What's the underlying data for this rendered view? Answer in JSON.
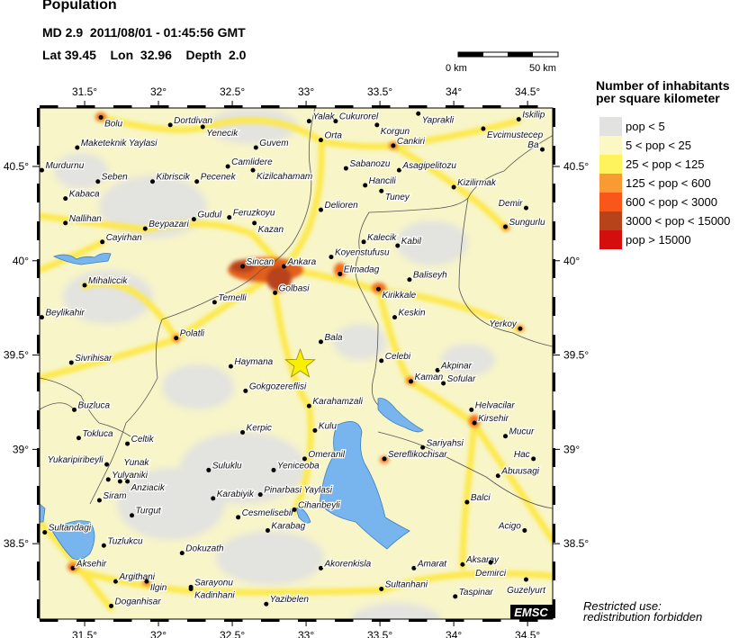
{
  "header": {
    "title": "Population",
    "event": "MD 2.9  2011/08/01 - 01:45:56 GMT",
    "location": "Lat 39.45    Lon  32.96    Depth  2.0"
  },
  "scale_bar": {
    "start_label": "0 km",
    "end_label": "50 km"
  },
  "legend": {
    "title_line1": "Number of inhabitants",
    "title_line2": "per square kilometer",
    "items": [
      {
        "label": "pop < 5",
        "color": "#e2e3e1"
      },
      {
        "label": "5 < pop < 25",
        "color": "#fbf8c6"
      },
      {
        "label": "25 < pop < 125",
        "color": "#fdf35c"
      },
      {
        "label": "125 < pop < 600",
        "color": "#fa9a32"
      },
      {
        "label": "600 < pop < 3000",
        "color": "#f9561a"
      },
      {
        "label": "3000 < pop < 15000",
        "color": "#b7431b"
      },
      {
        "label": "pop > 15000",
        "color": "#d40d0d"
      }
    ]
  },
  "map": {
    "lon_range": [
      31.195,
      34.67
    ],
    "lat_range": [
      38.1,
      40.81
    ],
    "lon_ticks": [
      {
        "v": 31.5,
        "label": "31.5°"
      },
      {
        "v": 32,
        "label": "32°"
      },
      {
        "v": 32.5,
        "label": "32.5°"
      },
      {
        "v": 33,
        "label": "33°"
      },
      {
        "v": 33.5,
        "label": "33.5°"
      },
      {
        "v": 34,
        "label": "34°"
      },
      {
        "v": 34.5,
        "label": "34.5°"
      }
    ],
    "lat_ticks": [
      {
        "v": 40.5,
        "label": "40.5°"
      },
      {
        "v": 40,
        "label": "40°"
      },
      {
        "v": 39.5,
        "label": "39.5°"
      },
      {
        "v": 39,
        "label": "39°"
      },
      {
        "v": 38.5,
        "label": "38.5°"
      }
    ],
    "epicenter": {
      "lon": 32.96,
      "lat": 39.45,
      "color": "#f8f000"
    },
    "cities": [
      {
        "name": "Bolu",
        "lon": 31.61,
        "lat": 40.76
      },
      {
        "name": "Dortdivan",
        "lon": 32.08,
        "lat": 40.72
      },
      {
        "name": "Yenecik",
        "lon": 32.3,
        "lat": 40.71
      },
      {
        "name": "Maketeknik Yaylasi",
        "lon": 31.45,
        "lat": 40.6
      },
      {
        "name": "Murdurnu",
        "lon": 31.21,
        "lat": 40.48
      },
      {
        "name": "Seben",
        "lon": 31.59,
        "lat": 40.42
      },
      {
        "name": "Kibriscik",
        "lon": 31.96,
        "lat": 40.42
      },
      {
        "name": "Pecenek",
        "lon": 32.26,
        "lat": 40.42
      },
      {
        "name": "Camlidere",
        "lon": 32.47,
        "lat": 40.5
      },
      {
        "name": "Kizilcahamam",
        "lon": 32.64,
        "lat": 40.48
      },
      {
        "name": "Guvem",
        "lon": 32.66,
        "lat": 40.6
      },
      {
        "name": "Kabaca",
        "lon": 31.37,
        "lat": 40.33
      },
      {
        "name": "Nallihan",
        "lon": 31.37,
        "lat": 40.2
      },
      {
        "name": "Cayirhan",
        "lon": 31.62,
        "lat": 40.1
      },
      {
        "name": "Beypazari",
        "lon": 31.91,
        "lat": 40.17
      },
      {
        "name": "Gudul",
        "lon": 32.24,
        "lat": 40.22
      },
      {
        "name": "Feruzkoyu",
        "lon": 32.48,
        "lat": 40.23
      },
      {
        "name": "Kazan",
        "lon": 32.65,
        "lat": 40.2
      },
      {
        "name": "Sincan",
        "lon": 32.57,
        "lat": 39.97
      },
      {
        "name": "Ankara",
        "lon": 32.85,
        "lat": 39.97
      },
      {
        "name": "Golbasi",
        "lon": 32.79,
        "lat": 39.83
      },
      {
        "name": "Temelli",
        "lon": 32.38,
        "lat": 39.78
      },
      {
        "name": "Mihaliccik",
        "lon": 31.5,
        "lat": 39.87
      },
      {
        "name": "Beylikahir",
        "lon": 31.21,
        "lat": 39.7
      },
      {
        "name": "Polatli",
        "lon": 32.12,
        "lat": 39.59
      },
      {
        "name": "Sivrihisar",
        "lon": 31.41,
        "lat": 39.46
      },
      {
        "name": "Haymana",
        "lon": 32.49,
        "lat": 39.44
      },
      {
        "name": "Gokgozereflisi",
        "lon": 32.59,
        "lat": 39.31
      },
      {
        "name": "Bala",
        "lon": 33.1,
        "lat": 39.57
      },
      {
        "name": "Karahamzali",
        "lon": 33.02,
        "lat": 39.23
      },
      {
        "name": "Kulu",
        "lon": 33.06,
        "lat": 39.1
      },
      {
        "name": "Kerpic",
        "lon": 32.57,
        "lat": 39.09
      },
      {
        "name": "Omeranil",
        "lon": 32.99,
        "lat": 38.95
      },
      {
        "name": "Yeniceoba",
        "lon": 32.78,
        "lat": 38.89
      },
      {
        "name": "Suluklu",
        "lon": 32.34,
        "lat": 38.89
      },
      {
        "name": "Karabiyik",
        "lon": 32.37,
        "lat": 38.74
      },
      {
        "name": "Pinarbasi Yaylasi",
        "lon": 32.69,
        "lat": 38.76
      },
      {
        "name": "Cesmelisebil",
        "lon": 32.54,
        "lat": 38.64
      },
      {
        "name": "Cihanbeyli",
        "lon": 32.92,
        "lat": 38.68
      },
      {
        "name": "Karabag",
        "lon": 32.74,
        "lat": 38.57
      },
      {
        "name": "Dokuzath",
        "lon": 32.16,
        "lat": 38.45
      },
      {
        "name": "Akorenkisla",
        "lon": 33.1,
        "lat": 38.37
      },
      {
        "name": "Sarayonu",
        "lon": 32.22,
        "lat": 38.27
      },
      {
        "name": "Kadinhani",
        "lon": 32.22,
        "lat": 38.26
      },
      {
        "name": "Yazibelen",
        "lon": 32.73,
        "lat": 38.18
      },
      {
        "name": "Doganhisar",
        "lon": 31.68,
        "lat": 38.17
      },
      {
        "name": "Argithani",
        "lon": 31.71,
        "lat": 38.3
      },
      {
        "name": "Ilgin",
        "lon": 31.92,
        "lat": 38.3
      },
      {
        "name": "Aksehir",
        "lon": 31.42,
        "lat": 38.37
      },
      {
        "name": "Tuzlukcu",
        "lon": 31.63,
        "lat": 38.49
      },
      {
        "name": "Sultandagi",
        "lon": 31.23,
        "lat": 38.56
      },
      {
        "name": "Turgut",
        "lon": 31.82,
        "lat": 38.65
      },
      {
        "name": "Siram",
        "lon": 31.6,
        "lat": 38.73
      },
      {
        "name": "Yulyaniki",
        "lon": 31.66,
        "lat": 38.84
      },
      {
        "name": "Yunak",
        "lon": 31.74,
        "lat": 38.83
      },
      {
        "name": "Anziacik",
        "lon": 31.79,
        "lat": 38.83
      },
      {
        "name": "Yukaripiribeyli",
        "lon": 31.65,
        "lat": 38.92
      },
      {
        "name": "Celtik",
        "lon": 31.79,
        "lat": 39.03
      },
      {
        "name": "Tokluca",
        "lon": 31.46,
        "lat": 39.06
      },
      {
        "name": "Buzluca",
        "lon": 31.43,
        "lat": 39.21
      },
      {
        "name": "Yalak",
        "lon": 33.02,
        "lat": 40.74
      },
      {
        "name": "Cukurorel",
        "lon": 33.2,
        "lat": 40.74
      },
      {
        "name": "Korgun",
        "lon": 33.48,
        "lat": 40.72
      },
      {
        "name": "Yaprakli",
        "lon": 33.76,
        "lat": 40.78
      },
      {
        "name": "Iskilip",
        "lon": 34.44,
        "lat": 40.75
      },
      {
        "name": "Evcimustecep",
        "lon": 34.2,
        "lat": 40.7
      },
      {
        "name": "Orta",
        "lon": 33.1,
        "lat": 40.64
      },
      {
        "name": "Cankiri",
        "lon": 33.59,
        "lat": 40.61
      },
      {
        "name": "Ba",
        "lon": 34.6,
        "lat": 40.59
      },
      {
        "name": "Sabanozu",
        "lon": 33.27,
        "lat": 40.49
      },
      {
        "name": "Asagipelitozu",
        "lon": 33.63,
        "lat": 40.48
      },
      {
        "name": "Hancili",
        "lon": 33.4,
        "lat": 40.4
      },
      {
        "name": "Tuney",
        "lon": 33.51,
        "lat": 40.37
      },
      {
        "name": "Kizilirmak",
        "lon": 34.0,
        "lat": 40.39
      },
      {
        "name": "Delioren",
        "lon": 33.1,
        "lat": 40.27
      },
      {
        "name": "Demir",
        "lon": 34.49,
        "lat": 40.28
      },
      {
        "name": "Sungurlu",
        "lon": 34.35,
        "lat": 40.18
      },
      {
        "name": "Kalecik",
        "lon": 33.39,
        "lat": 40.1
      },
      {
        "name": "Kabil",
        "lon": 33.62,
        "lat": 40.08
      },
      {
        "name": "Koyenstufusu",
        "lon": 33.17,
        "lat": 40.02
      },
      {
        "name": "Elmadag",
        "lon": 33.23,
        "lat": 39.93
      },
      {
        "name": "Baliseyh",
        "lon": 33.7,
        "lat": 39.9
      },
      {
        "name": "Kirikkale",
        "lon": 33.49,
        "lat": 39.85
      },
      {
        "name": "Keskin",
        "lon": 33.6,
        "lat": 39.7
      },
      {
        "name": "Yerkoy",
        "lon": 34.45,
        "lat": 39.64
      },
      {
        "name": "Celebi",
        "lon": 33.51,
        "lat": 39.47
      },
      {
        "name": "Akpinar",
        "lon": 33.89,
        "lat": 39.42
      },
      {
        "name": "Kaman",
        "lon": 33.71,
        "lat": 39.36
      },
      {
        "name": "Sofular",
        "lon": 33.93,
        "lat": 39.35
      },
      {
        "name": "Helvacilar",
        "lon": 34.12,
        "lat": 39.21
      },
      {
        "name": "Kirsehir",
        "lon": 34.14,
        "lat": 39.14
      },
      {
        "name": "Mucur",
        "lon": 34.35,
        "lat": 39.07
      },
      {
        "name": "Hac",
        "lon": 34.54,
        "lat": 38.95
      },
      {
        "name": "Sariyahsi",
        "lon": 33.79,
        "lat": 39.01
      },
      {
        "name": "Sereflikochisar",
        "lon": 33.53,
        "lat": 38.95
      },
      {
        "name": "Abuusagi",
        "lon": 34.3,
        "lat": 38.86
      },
      {
        "name": "Balci",
        "lon": 34.09,
        "lat": 38.72
      },
      {
        "name": "Acigo",
        "lon": 34.48,
        "lat": 38.57
      },
      {
        "name": "Aksaray",
        "lon": 34.06,
        "lat": 38.39
      },
      {
        "name": "Demirci",
        "lon": 34.25,
        "lat": 38.4
      },
      {
        "name": "Amarat",
        "lon": 33.73,
        "lat": 38.37
      },
      {
        "name": "Sultanhani",
        "lon": 33.51,
        "lat": 38.26
      },
      {
        "name": "Taspinar",
        "lon": 34.01,
        "lat": 38.22
      },
      {
        "name": "Guzelyurt",
        "lon": 34.49,
        "lat": 38.31
      }
    ]
  },
  "notes": {
    "line1": "Restricted use:",
    "line2": "redistribution forbidden"
  },
  "logo": {
    "text": "EMSC"
  }
}
